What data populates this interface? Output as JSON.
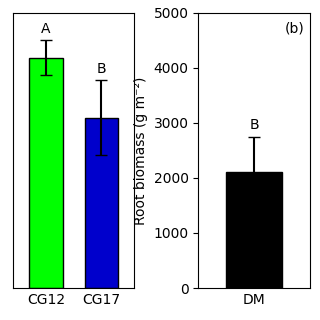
{
  "chart_data": [
    {
      "type": "bar",
      "categories": [
        "CG12",
        "CG17"
      ],
      "values": [
        4600,
        3400
      ],
      "errors": [
        350,
        750
      ],
      "colors": [
        "#00FF00",
        "#0000CC"
      ],
      "ylim": [
        0,
        5500
      ],
      "tick_labels": "x",
      "annotations": [
        "A",
        "B"
      ]
    },
    {
      "type": "bar",
      "categories": [
        "DM"
      ],
      "values": [
        2100
      ],
      "errors": [
        650
      ],
      "colors": [
        "#000000"
      ],
      "ylim": [
        0,
        5000
      ],
      "yticks": [
        0,
        1000,
        2000,
        3000,
        4000,
        5000
      ],
      "y_label": "Root biomass (g m⁻²)",
      "annotations": [
        "B"
      ],
      "panel_label": "(b)"
    }
  ]
}
